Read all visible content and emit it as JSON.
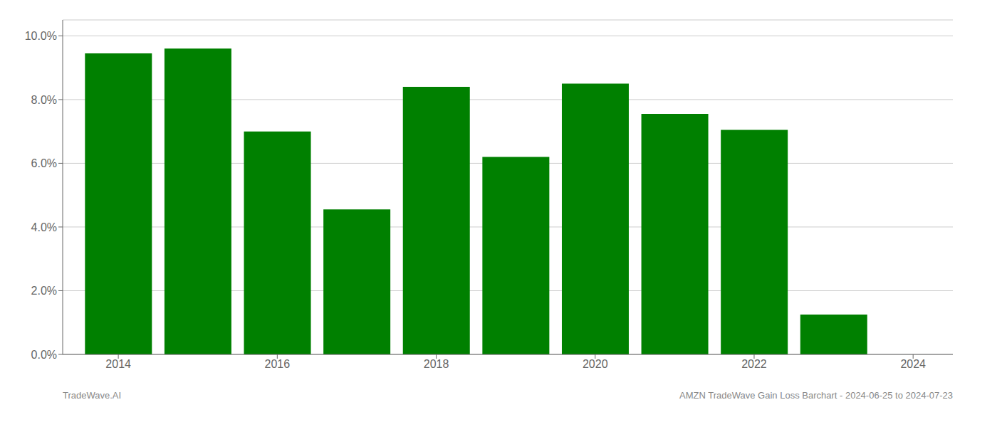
{
  "chart_data": {
    "type": "bar",
    "x": [
      2014,
      2015,
      2016,
      2017,
      2018,
      2019,
      2020,
      2021,
      2022,
      2023
    ],
    "values": [
      0.0945,
      0.096,
      0.07,
      0.0455,
      0.084,
      0.062,
      0.085,
      0.0755,
      0.0705,
      0.0125
    ],
    "color": "#008000",
    "xlim": [
      2013.3,
      2024.5
    ],
    "xticks": [
      2014,
      2016,
      2018,
      2020,
      2022,
      2024
    ],
    "ylim": [
      0,
      0.105
    ],
    "yticks": [
      {
        "value": 0,
        "label": "0.0%"
      },
      {
        "value": 0.02,
        "label": "2.0%"
      },
      {
        "value": 0.04,
        "label": "4.0%"
      },
      {
        "value": 0.06,
        "label": "6.0%"
      },
      {
        "value": 0.08,
        "label": "8.0%"
      },
      {
        "value": 0.1,
        "label": "10.0%"
      }
    ],
    "grid": true,
    "annotations": [
      "TradeWave.AI",
      "AMZN TradeWave Gain Loss Barchart - 2024-06-25 to 2024-07-23"
    ]
  }
}
